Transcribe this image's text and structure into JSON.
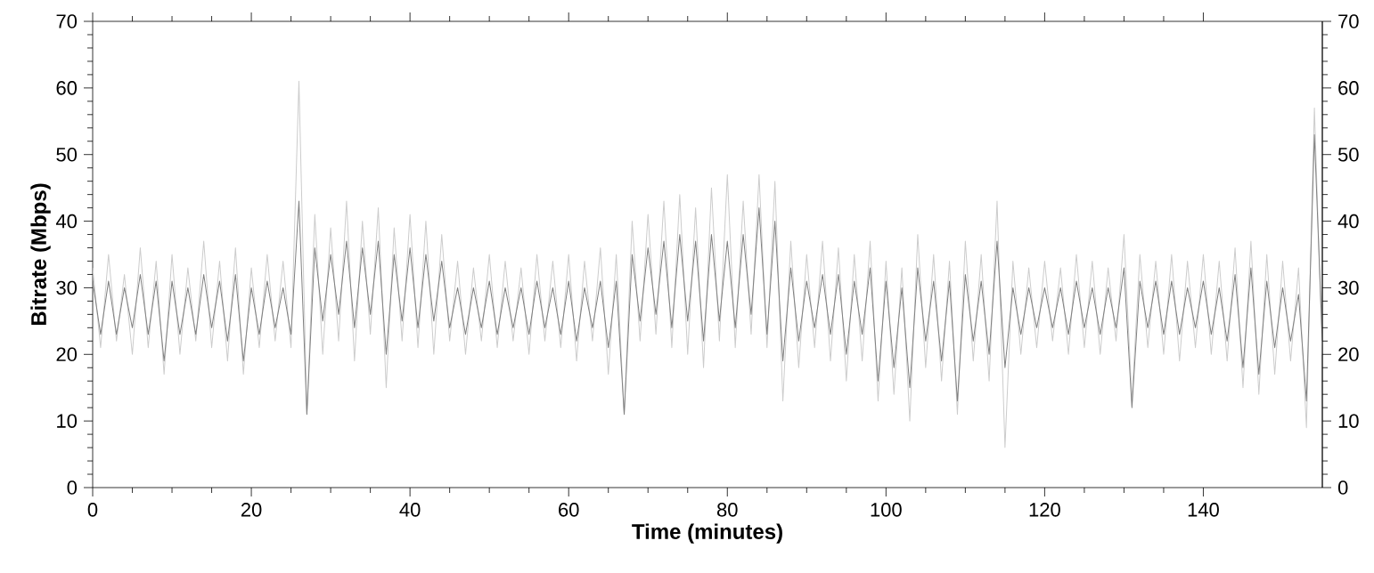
{
  "chart_data": {
    "type": "line",
    "xlabel": "Time (minutes)",
    "ylabel": "Bitrate (Mbps)",
    "x": [
      0,
      1,
      2,
      3,
      4,
      5,
      6,
      7,
      8,
      9,
      10,
      11,
      12,
      13,
      14,
      15,
      16,
      17,
      18,
      19,
      20,
      21,
      22,
      23,
      24,
      25,
      26,
      27,
      28,
      29,
      30,
      31,
      32,
      33,
      34,
      35,
      36,
      37,
      38,
      39,
      40,
      41,
      42,
      43,
      44,
      45,
      46,
      47,
      48,
      49,
      50,
      51,
      52,
      53,
      54,
      55,
      56,
      57,
      58,
      59,
      60,
      61,
      62,
      63,
      64,
      65,
      66,
      67,
      68,
      69,
      70,
      71,
      72,
      73,
      74,
      75,
      76,
      77,
      78,
      79,
      80,
      81,
      82,
      83,
      84,
      85,
      86,
      87,
      88,
      89,
      90,
      91,
      92,
      93,
      94,
      95,
      96,
      97,
      98,
      99,
      100,
      101,
      102,
      103,
      104,
      105,
      106,
      107,
      108,
      109,
      110,
      111,
      112,
      113,
      114,
      115,
      116,
      117,
      118,
      119,
      120,
      121,
      122,
      123,
      124,
      125,
      126,
      127,
      128,
      129,
      130,
      131,
      132,
      133,
      134,
      135,
      136,
      137,
      138,
      139,
      140,
      141,
      142,
      143,
      144,
      145,
      146,
      147,
      148,
      149,
      150,
      151,
      152,
      153,
      154,
      155
    ],
    "series": [
      {
        "color": "#cccccc",
        "values": [
          33,
          21,
          35,
          22,
          32,
          20,
          36,
          21,
          34,
          17,
          35,
          20,
          33,
          22,
          37,
          21,
          34,
          19,
          36,
          17,
          33,
          21,
          35,
          22,
          34,
          21,
          61,
          11,
          41,
          20,
          39,
          22,
          43,
          19,
          40,
          23,
          42,
          15,
          39,
          22,
          41,
          21,
          40,
          20,
          38,
          22,
          34,
          20,
          33,
          22,
          35,
          21,
          34,
          22,
          33,
          20,
          35,
          22,
          34,
          21,
          35,
          19,
          34,
          22,
          36,
          17,
          35,
          11,
          40,
          22,
          41,
          23,
          43,
          21,
          44,
          20,
          42,
          18,
          45,
          22,
          47,
          21,
          43,
          23,
          47,
          21,
          46,
          13,
          37,
          18,
          35,
          21,
          37,
          19,
          36,
          16,
          35,
          19,
          37,
          13,
          34,
          14,
          33,
          10,
          38,
          18,
          35,
          16,
          34,
          11,
          37,
          19,
          35,
          16,
          43,
          6,
          34,
          20,
          33,
          21,
          34,
          22,
          33,
          20,
          35,
          21,
          34,
          20,
          33,
          22,
          38,
          13,
          35,
          21,
          34,
          20,
          35,
          19,
          34,
          21,
          35,
          20,
          34,
          19,
          36,
          15,
          37,
          14,
          35,
          17,
          34,
          19,
          33,
          9,
          57,
          20
        ]
      },
      {
        "color": "#808080",
        "values": [
          31,
          23,
          31,
          23,
          30,
          24,
          32,
          23,
          31,
          19,
          31,
          23,
          30,
          23,
          32,
          24,
          31,
          22,
          32,
          19,
          30,
          23,
          31,
          24,
          30,
          23,
          43,
          11,
          36,
          25,
          35,
          26,
          37,
          24,
          36,
          26,
          37,
          20,
          35,
          25,
          36,
          24,
          35,
          25,
          34,
          24,
          30,
          23,
          30,
          24,
          31,
          23,
          30,
          24,
          30,
          23,
          31,
          24,
          30,
          23,
          31,
          22,
          30,
          24,
          31,
          21,
          31,
          11,
          35,
          25,
          36,
          26,
          37,
          24,
          38,
          25,
          37,
          22,
          38,
          25,
          37,
          24,
          38,
          26,
          42,
          23,
          40,
          19,
          33,
          22,
          31,
          24,
          32,
          23,
          32,
          20,
          31,
          23,
          33,
          16,
          31,
          18,
          30,
          15,
          33,
          22,
          31,
          19,
          31,
          13,
          32,
          22,
          31,
          20,
          37,
          18,
          30,
          23,
          30,
          24,
          30,
          24,
          30,
          23,
          31,
          24,
          30,
          23,
          30,
          24,
          33,
          12,
          31,
          24,
          31,
          23,
          31,
          23,
          30,
          24,
          31,
          23,
          30,
          22,
          32,
          18,
          33,
          17,
          31,
          21,
          30,
          22,
          29,
          13,
          53,
          22
        ]
      }
    ],
    "xlim": [
      0,
      155
    ],
    "xticks": [
      0,
      20,
      40,
      60,
      80,
      100,
      120,
      140
    ],
    "ylim": [
      0,
      70
    ],
    "yticks": [
      0,
      10,
      20,
      30,
      40,
      50,
      60,
      70
    ],
    "y2lim": [
      0,
      70
    ],
    "y2ticks": [
      0,
      10,
      20,
      30,
      40,
      50,
      60,
      70
    ]
  }
}
